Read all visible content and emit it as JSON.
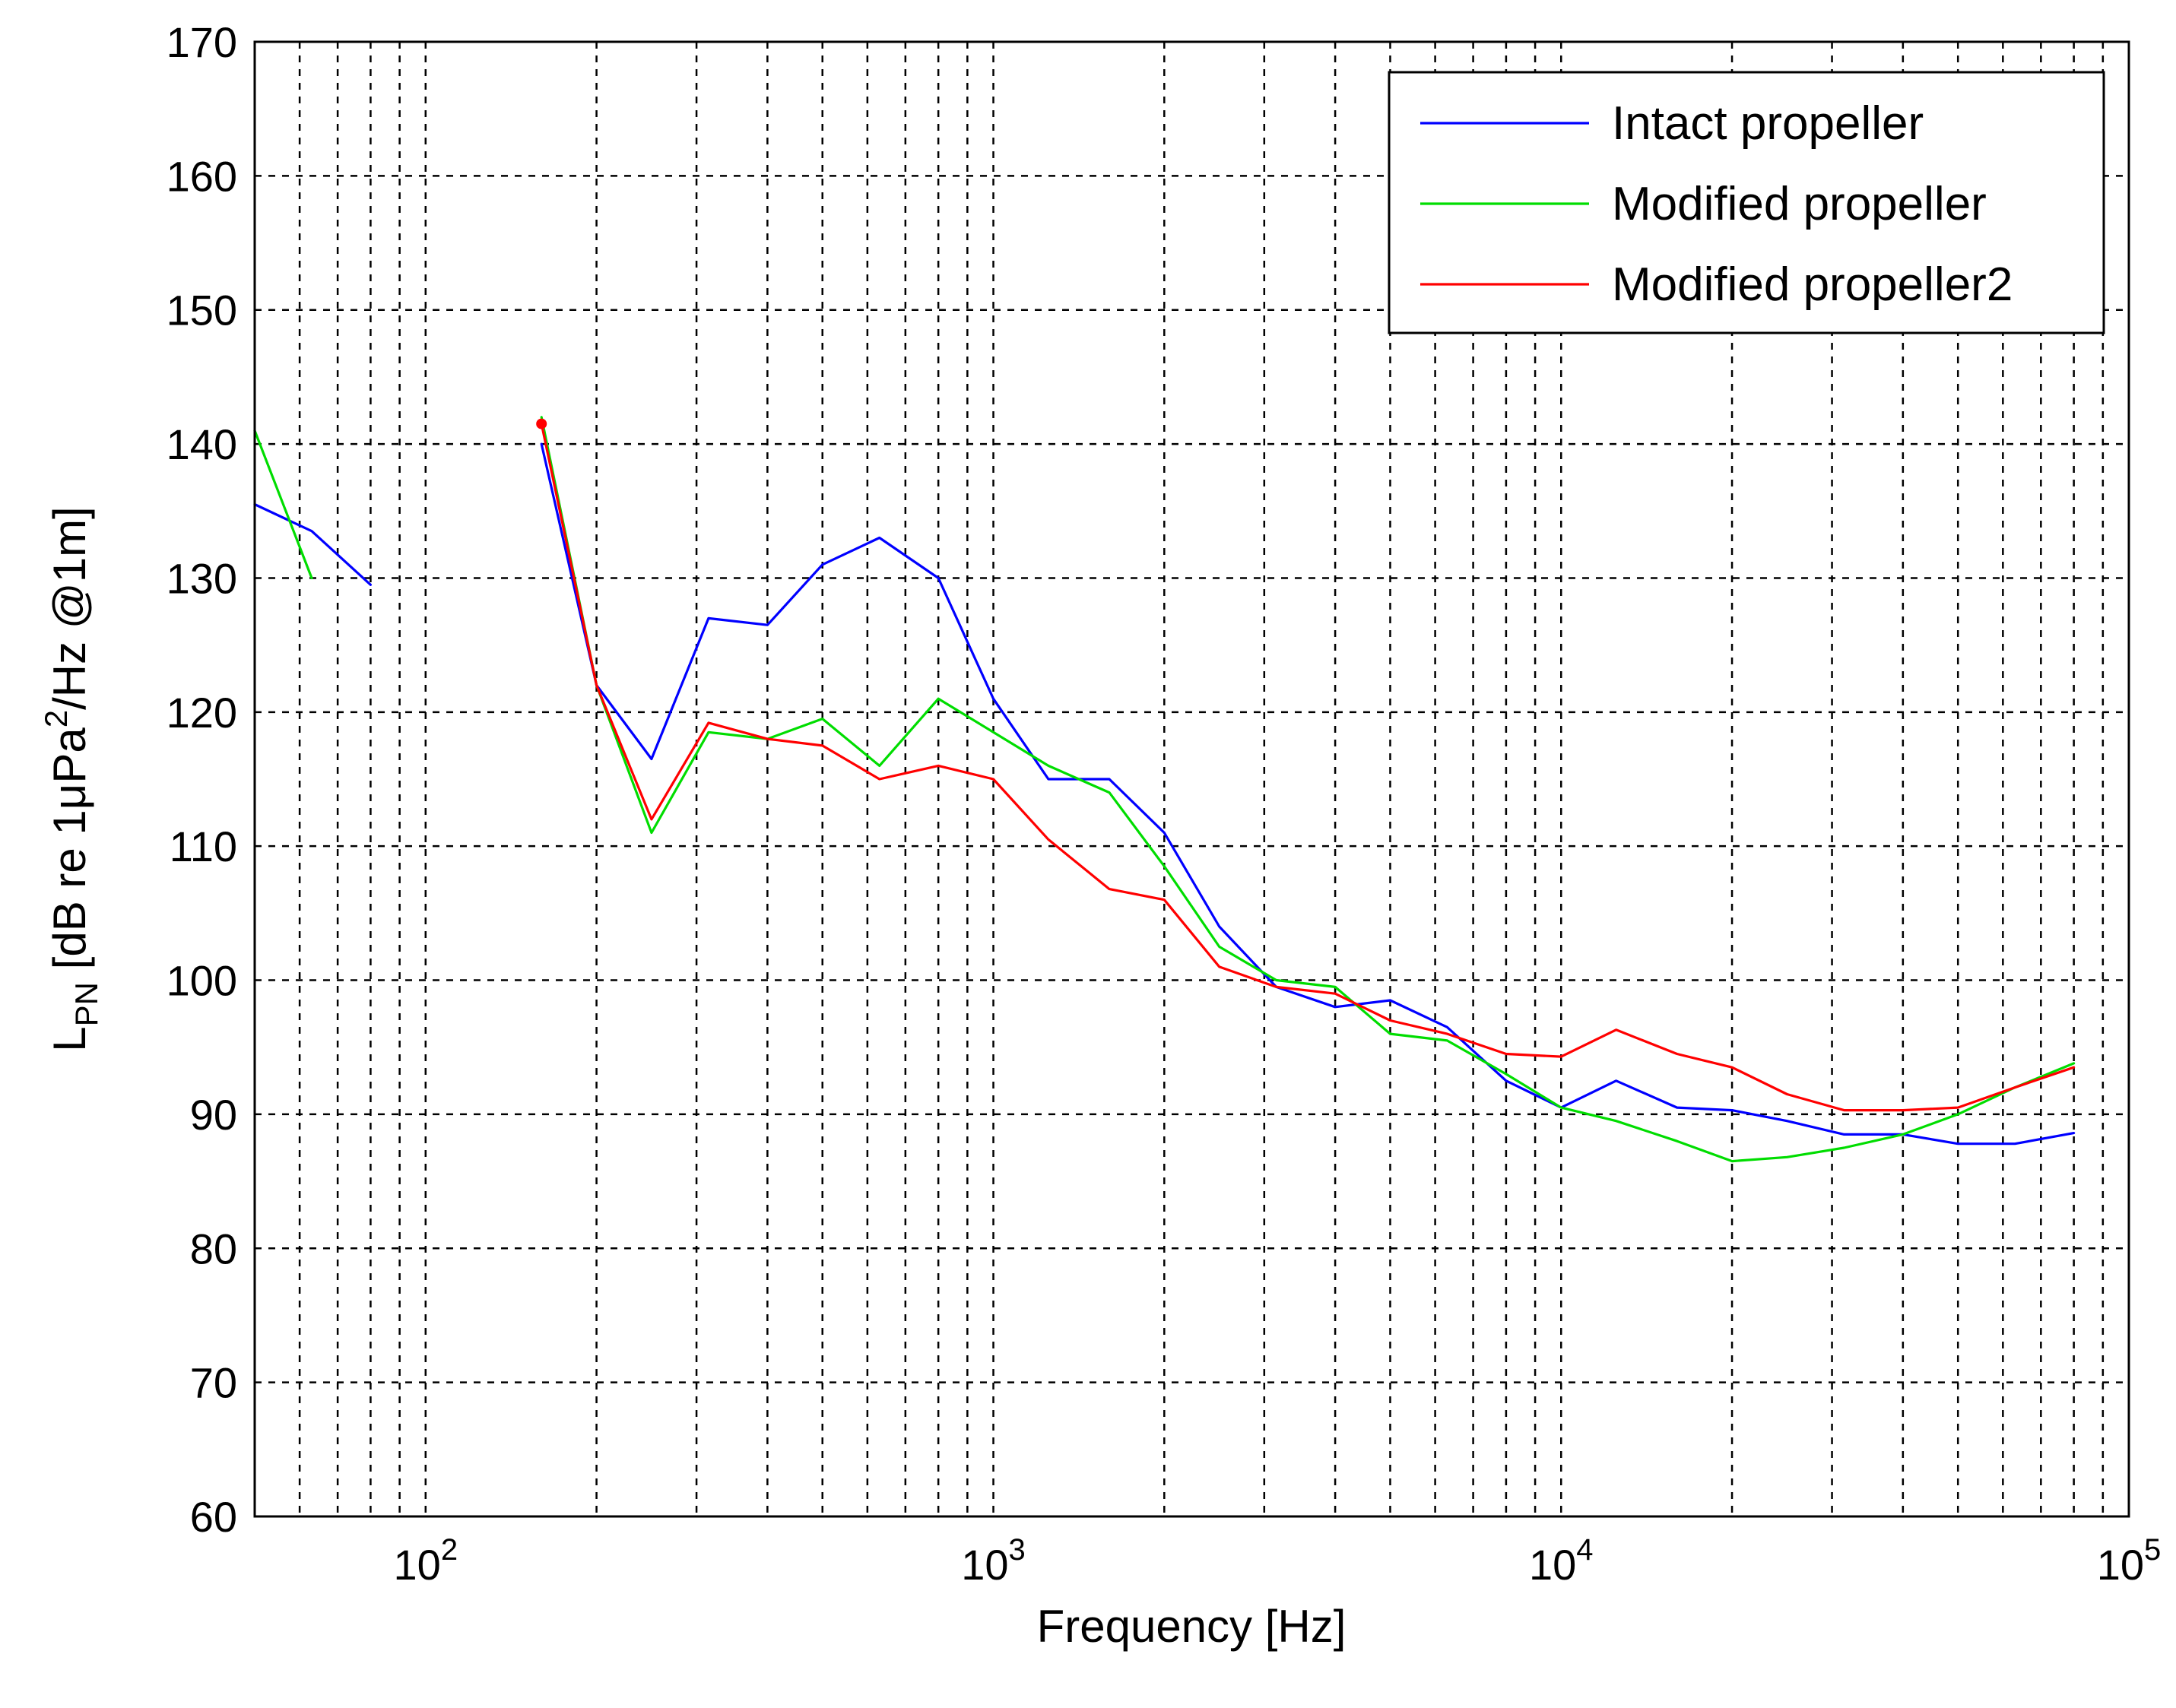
{
  "chart_data": {
    "type": "line",
    "xscale": "log",
    "xlim": [
      50,
      100000
    ],
    "ylim": [
      60,
      170
    ],
    "grid": true,
    "title": "",
    "xlabel": "Frequency [Hz]",
    "ylabel": {
      "main": "L",
      "sub": "PN",
      "rest1": " [dB re 1",
      "mu": "μ",
      "rest2": "Pa",
      "sup": "2",
      "rest3": "/Hz @1m]"
    },
    "y_ticks": [
      "60",
      "70",
      "80",
      "90",
      "100",
      "110",
      "120",
      "130",
      "140",
      "150",
      "160",
      "170"
    ],
    "y_tick_values": [
      60,
      70,
      80,
      90,
      100,
      110,
      120,
      130,
      140,
      150,
      160,
      170
    ],
    "x_ticks": [
      {
        "value": 100,
        "base": "10",
        "exp": "2"
      },
      {
        "value": 1000,
        "base": "10",
        "exp": "3"
      },
      {
        "value": 10000,
        "base": "10",
        "exp": "4"
      },
      {
        "value": 100000,
        "base": "10",
        "exp": "5"
      }
    ],
    "legend_position": "top-right",
    "series": [
      {
        "name": "Intact propeller",
        "color": "#0000ff",
        "segments": [
          [
            [
              50,
              135.5
            ],
            [
              63,
              133.5
            ],
            [
              80,
              129.5
            ]
          ],
          [
            [
              160,
              140
            ],
            [
              200,
              122
            ],
            [
              250,
              116.5
            ],
            [
              315,
              127
            ],
            [
              400,
              126.5
            ],
            [
              500,
              131
            ],
            [
              630,
              133
            ],
            [
              800,
              130
            ],
            [
              1000,
              121
            ],
            [
              1250,
              115
            ],
            [
              1600,
              115
            ],
            [
              2000,
              111
            ],
            [
              2500,
              104
            ],
            [
              3150,
              99.5
            ],
            [
              4000,
              98
            ],
            [
              5000,
              98.5
            ],
            [
              6300,
              96.5
            ],
            [
              8000,
              92.5
            ],
            [
              10000,
              90.5
            ],
            [
              12500,
              92.5
            ],
            [
              16000,
              90.5
            ],
            [
              20000,
              90.3
            ],
            [
              25000,
              89.5
            ],
            [
              31500,
              88.5
            ],
            [
              40000,
              88.5
            ],
            [
              50000,
              87.8
            ],
            [
              63000,
              87.8
            ],
            [
              80000,
              88.6
            ]
          ]
        ]
      },
      {
        "name": "Modified propeller",
        "color": "#00dd00",
        "segments": [
          [
            [
              50,
              141
            ],
            [
              63,
              130
            ]
          ],
          [
            [
              160,
              142
            ],
            [
              200,
              122
            ],
            [
              250,
              111
            ],
            [
              315,
              118.5
            ],
            [
              400,
              118
            ],
            [
              500,
              119.5
            ],
            [
              630,
              116
            ],
            [
              800,
              121
            ],
            [
              1000,
              118.5
            ],
            [
              1250,
              116
            ],
            [
              1600,
              114
            ],
            [
              2000,
              108.5
            ],
            [
              2500,
              102.5
            ],
            [
              3150,
              100
            ],
            [
              4000,
              99.5
            ],
            [
              5000,
              96
            ],
            [
              6300,
              95.5
            ],
            [
              8000,
              93
            ],
            [
              10000,
              90.5
            ],
            [
              12500,
              89.5
            ],
            [
              16000,
              88
            ],
            [
              20000,
              86.5
            ],
            [
              25000,
              86.8
            ],
            [
              31500,
              87.5
            ],
            [
              40000,
              88.5
            ],
            [
              50000,
              90
            ],
            [
              63000,
              92
            ],
            [
              80000,
              93.8
            ]
          ]
        ]
      },
      {
        "name": "Modified propeller2",
        "color": "#ff0000",
        "segments": [
          [
            [
              160,
              141.5
            ],
            [
              200,
              122
            ],
            [
              250,
              112
            ],
            [
              315,
              119.2
            ],
            [
              400,
              118
            ],
            [
              500,
              117.5
            ],
            [
              630,
              115
            ],
            [
              800,
              116
            ],
            [
              1000,
              115
            ],
            [
              1250,
              110.5
            ],
            [
              1600,
              106.8
            ],
            [
              2000,
              106
            ],
            [
              2500,
              101
            ],
            [
              3150,
              99.5
            ],
            [
              4000,
              99
            ],
            [
              5000,
              97
            ],
            [
              6300,
              96
            ],
            [
              8000,
              94.5
            ],
            [
              10000,
              94.3
            ],
            [
              12500,
              96.3
            ],
            [
              16000,
              94.5
            ],
            [
              20000,
              93.5
            ],
            [
              25000,
              91.5
            ],
            [
              31500,
              90.3
            ],
            [
              40000,
              90.3
            ],
            [
              50000,
              90.5
            ],
            [
              63000,
              92
            ],
            [
              80000,
              93.5
            ]
          ]
        ]
      }
    ]
  }
}
